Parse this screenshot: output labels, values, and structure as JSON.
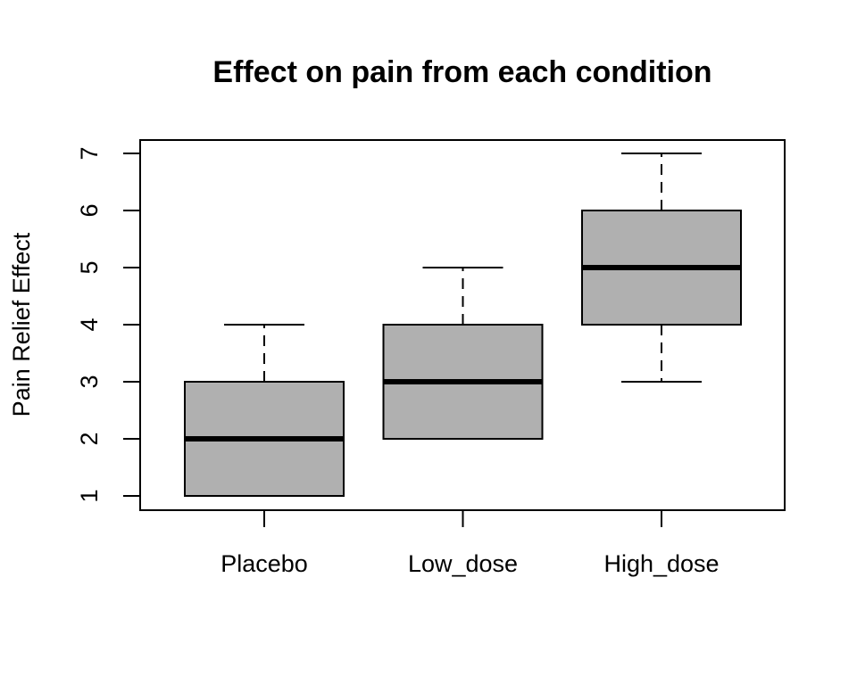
{
  "chart_data": {
    "type": "boxplot",
    "title": "Effect on pain from each condition",
    "xlabel": "",
    "ylabel": "Pain Relief Effect",
    "ylim": [
      0.75,
      7.25
    ],
    "yticks": [
      1,
      2,
      3,
      4,
      5,
      6,
      7
    ],
    "ytick_labels": [
      "1",
      "2",
      "3",
      "4",
      "5",
      "6",
      "7"
    ],
    "grid": false,
    "legend": "none",
    "categories": [
      "Placebo",
      "Low_dose",
      "High_dose"
    ],
    "boxes": [
      {
        "name": "Placebo",
        "whisker_low": 1,
        "q1": 1,
        "median": 2,
        "q3": 3,
        "whisker_high": 4
      },
      {
        "name": "Low_dose",
        "whisker_low": 2,
        "q1": 2,
        "median": 3,
        "q3": 4,
        "whisker_high": 5
      },
      {
        "name": "High_dose",
        "whisker_low": 3,
        "q1": 4,
        "median": 5,
        "q3": 6,
        "whisker_high": 7
      }
    ],
    "colors": {
      "box_fill": "#b0b0b0",
      "stroke": "#000000",
      "background": "#ffffff"
    }
  }
}
